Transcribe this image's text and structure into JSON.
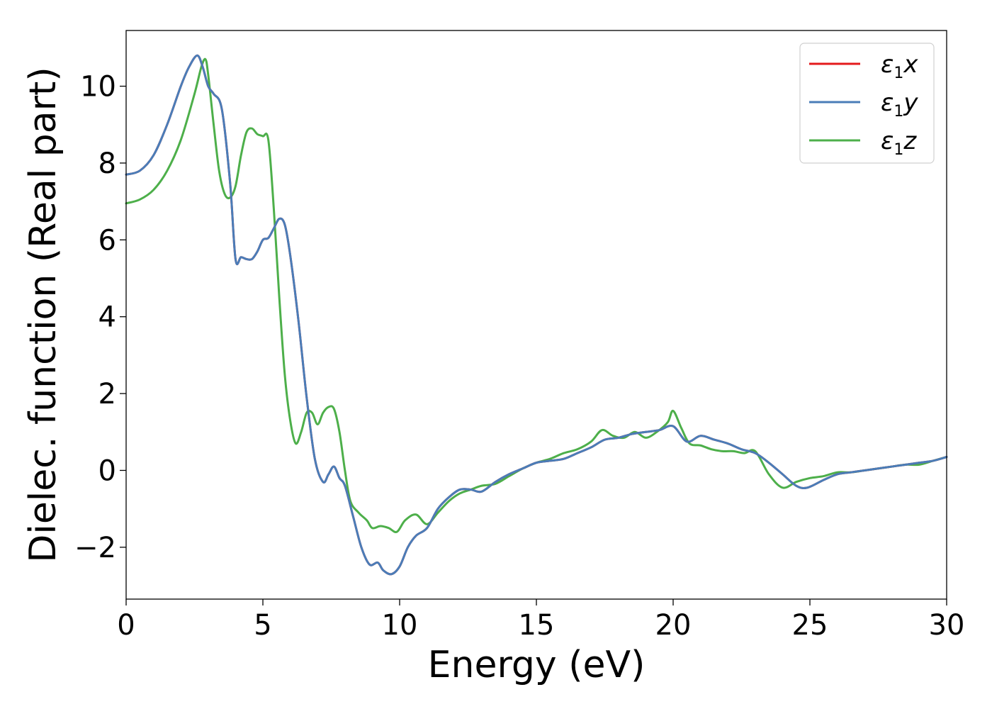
{
  "chart_data": {
    "type": "line",
    "xlabel": "Energy (eV)",
    "ylabel": "Dielec. function (Real part)",
    "xlim": [
      0,
      30
    ],
    "ylim": [
      -3.35,
      11.45
    ],
    "xticks": [
      0,
      5,
      10,
      15,
      20,
      25,
      30
    ],
    "xtick_labels": [
      "0",
      "5",
      "10",
      "15",
      "20",
      "25",
      "30"
    ],
    "yticks": [
      -2,
      0,
      2,
      4,
      6,
      8,
      10
    ],
    "ytick_labels": [
      "−2",
      "0",
      "2",
      "4",
      "6",
      "8",
      "10"
    ],
    "grid": false,
    "legend_position": "top-right",
    "colors": {
      "x": "#e41a1c",
      "y": "#4a7db8",
      "z": "#4daf4a"
    },
    "series": [
      {
        "name": "ε1x",
        "legend_main": "ε",
        "legend_sub": "1",
        "legend_tail": "x",
        "color": "#e41a1c",
        "x": [
          0,
          0.5,
          1.0,
          1.5,
          2.0,
          2.3,
          2.6,
          2.8,
          3.0,
          3.2,
          3.5,
          3.8,
          4.0,
          4.2,
          4.4,
          4.6,
          4.8,
          5.0,
          5.2,
          5.4,
          5.6,
          5.8,
          6.0,
          6.3,
          6.6,
          6.9,
          7.2,
          7.4,
          7.6,
          7.8,
          8.0,
          8.3,
          8.6,
          8.9,
          9.2,
          9.4,
          9.7,
          10.0,
          10.3,
          10.6,
          11.0,
          11.4,
          11.8,
          12.2,
          12.6,
          13.0,
          13.5,
          14.0,
          14.5,
          15.0,
          15.5,
          16.0,
          16.5,
          17.0,
          17.5,
          18.0,
          18.5,
          19.0,
          19.5,
          20.0,
          20.5,
          21.0,
          21.5,
          22.0,
          22.5,
          23.0,
          23.5,
          24.0,
          24.5,
          24.9,
          25.5,
          26.0,
          26.5,
          27.0,
          27.5,
          28.0,
          28.5,
          29.0,
          29.5,
          30.0
        ],
        "y": [
          7.7,
          7.8,
          8.2,
          9.0,
          10.0,
          10.5,
          10.8,
          10.5,
          10.0,
          9.8,
          9.4,
          7.5,
          5.5,
          5.55,
          5.5,
          5.5,
          5.7,
          6.0,
          6.05,
          6.3,
          6.55,
          6.4,
          5.6,
          3.9,
          1.9,
          0.3,
          -0.3,
          -0.1,
          0.1,
          -0.2,
          -0.4,
          -1.2,
          -2.0,
          -2.45,
          -2.4,
          -2.6,
          -2.7,
          -2.5,
          -2.0,
          -1.7,
          -1.5,
          -1.0,
          -0.7,
          -0.5,
          -0.5,
          -0.55,
          -0.3,
          -0.1,
          0.05,
          0.2,
          0.25,
          0.3,
          0.45,
          0.6,
          0.8,
          0.85,
          0.95,
          1.0,
          1.05,
          1.15,
          0.75,
          0.9,
          0.8,
          0.7,
          0.55,
          0.45,
          0.2,
          -0.1,
          -0.4,
          -0.45,
          -0.25,
          -0.1,
          -0.05,
          0.0,
          0.05,
          0.1,
          0.15,
          0.2,
          0.25,
          0.35
        ]
      },
      {
        "name": "ε1y",
        "legend_main": "ε",
        "legend_sub": "1",
        "legend_tail": "y",
        "color": "#4a7db8",
        "x": [
          0,
          0.5,
          1.0,
          1.5,
          2.0,
          2.3,
          2.6,
          2.8,
          3.0,
          3.2,
          3.5,
          3.8,
          4.0,
          4.2,
          4.4,
          4.6,
          4.8,
          5.0,
          5.2,
          5.4,
          5.6,
          5.8,
          6.0,
          6.3,
          6.6,
          6.9,
          7.2,
          7.4,
          7.6,
          7.8,
          8.0,
          8.3,
          8.6,
          8.9,
          9.2,
          9.4,
          9.7,
          10.0,
          10.3,
          10.6,
          11.0,
          11.4,
          11.8,
          12.2,
          12.6,
          13.0,
          13.5,
          14.0,
          14.5,
          15.0,
          15.5,
          16.0,
          16.5,
          17.0,
          17.5,
          18.0,
          18.5,
          19.0,
          19.5,
          20.0,
          20.5,
          21.0,
          21.5,
          22.0,
          22.5,
          23.0,
          23.5,
          24.0,
          24.5,
          24.9,
          25.5,
          26.0,
          26.5,
          27.0,
          27.5,
          28.0,
          28.5,
          29.0,
          29.5,
          30.0
        ],
        "y": [
          7.7,
          7.8,
          8.2,
          9.0,
          10.0,
          10.5,
          10.8,
          10.5,
          10.0,
          9.8,
          9.4,
          7.5,
          5.5,
          5.55,
          5.5,
          5.5,
          5.7,
          6.0,
          6.05,
          6.3,
          6.55,
          6.4,
          5.6,
          3.9,
          1.9,
          0.3,
          -0.3,
          -0.1,
          0.1,
          -0.2,
          -0.4,
          -1.2,
          -2.0,
          -2.45,
          -2.4,
          -2.6,
          -2.7,
          -2.5,
          -2.0,
          -1.7,
          -1.5,
          -1.0,
          -0.7,
          -0.5,
          -0.5,
          -0.55,
          -0.3,
          -0.1,
          0.05,
          0.2,
          0.25,
          0.3,
          0.45,
          0.6,
          0.8,
          0.85,
          0.95,
          1.0,
          1.05,
          1.15,
          0.75,
          0.9,
          0.8,
          0.7,
          0.55,
          0.45,
          0.2,
          -0.1,
          -0.4,
          -0.45,
          -0.25,
          -0.1,
          -0.05,
          0.0,
          0.05,
          0.1,
          0.15,
          0.2,
          0.25,
          0.35
        ]
      },
      {
        "name": "ε1z",
        "legend_main": "ε",
        "legend_sub": "1",
        "legend_tail": "z",
        "color": "#4daf4a",
        "x": [
          0,
          0.5,
          1.0,
          1.5,
          2.0,
          2.5,
          2.75,
          2.9,
          3.0,
          3.2,
          3.4,
          3.6,
          3.8,
          4.0,
          4.2,
          4.4,
          4.6,
          4.8,
          5.0,
          5.2,
          5.4,
          5.6,
          5.8,
          6.0,
          6.2,
          6.4,
          6.6,
          6.8,
          7.0,
          7.2,
          7.4,
          7.6,
          7.8,
          8.0,
          8.2,
          8.5,
          8.8,
          9.0,
          9.3,
          9.6,
          9.9,
          10.2,
          10.6,
          11.0,
          11.4,
          11.8,
          12.2,
          12.6,
          13.0,
          13.5,
          14.0,
          14.5,
          15.0,
          15.5,
          16.0,
          16.5,
          17.0,
          17.4,
          17.8,
          18.2,
          18.6,
          19.0,
          19.4,
          19.8,
          20.0,
          20.3,
          20.6,
          21.0,
          21.4,
          21.8,
          22.2,
          22.6,
          23.0,
          23.5,
          24.0,
          24.5,
          25.0,
          25.5,
          26.0,
          26.5,
          27.0,
          27.5,
          28.0,
          28.5,
          29.0,
          29.5,
          30.0
        ],
        "y": [
          6.95,
          7.05,
          7.3,
          7.8,
          8.6,
          9.8,
          10.5,
          10.7,
          10.3,
          9.0,
          7.8,
          7.2,
          7.1,
          7.4,
          8.2,
          8.8,
          8.9,
          8.75,
          8.7,
          8.6,
          6.8,
          4.5,
          2.5,
          1.3,
          0.7,
          1.0,
          1.5,
          1.5,
          1.2,
          1.5,
          1.65,
          1.6,
          1.0,
          0.0,
          -0.8,
          -1.1,
          -1.3,
          -1.5,
          -1.45,
          -1.5,
          -1.6,
          -1.3,
          -1.15,
          -1.4,
          -1.1,
          -0.8,
          -0.6,
          -0.5,
          -0.4,
          -0.35,
          -0.15,
          0.05,
          0.2,
          0.3,
          0.45,
          0.55,
          0.75,
          1.05,
          0.9,
          0.85,
          1.0,
          0.85,
          1.0,
          1.25,
          1.55,
          1.1,
          0.7,
          0.65,
          0.55,
          0.5,
          0.5,
          0.45,
          0.5,
          -0.1,
          -0.45,
          -0.3,
          -0.2,
          -0.15,
          -0.05,
          -0.05,
          0.0,
          0.05,
          0.1,
          0.15,
          0.15,
          0.25,
          0.35
        ]
      }
    ]
  }
}
